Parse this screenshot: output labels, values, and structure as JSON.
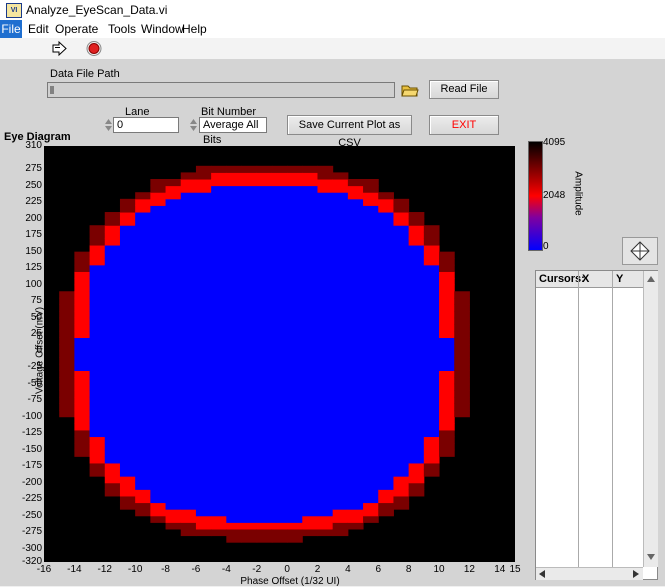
{
  "window": {
    "title": "Analyze_EyeScan_Data.vi"
  },
  "menu": [
    "File",
    "Edit",
    "Operate",
    "Tools",
    "Window",
    "Help"
  ],
  "controls": {
    "data_file_path_label": "Data File Path",
    "data_file_path_value": "",
    "read_file_label": "Read File",
    "lane_label": "Lane",
    "lane_value": "0",
    "bit_number_label": "Bit Number",
    "bit_number_value": "Average All Bits",
    "save_csv_label": "Save Current Plot as CSV",
    "exit_label": "EXIT"
  },
  "colors": {
    "exit_text": "#ff0000",
    "eye_fill": "#0000ff",
    "plot_bg": "#000000",
    "edge": "#ff0000"
  },
  "chart_data": {
    "type": "heatmap",
    "title": "Eye Diagram",
    "xlabel": "Phase Offset (1/32 UI)",
    "ylabel": "Voltage Offset (mV)",
    "xlim": [
      -16,
      15
    ],
    "ylim": [
      -320,
      310
    ],
    "x_ticks": [
      "-16",
      "-14",
      "-12",
      "-10",
      "-8",
      "-6",
      "-4",
      "-2",
      "0",
      "2",
      "4",
      "6",
      "8",
      "10",
      "12",
      "14",
      "15"
    ],
    "y_ticks": [
      "310",
      "275",
      "250",
      "225",
      "200",
      "175",
      "150",
      "125",
      "100",
      "75",
      "50",
      "25",
      "0",
      "-25",
      "-50",
      "-75",
      "-100",
      "-125",
      "-150",
      "-175",
      "-200",
      "-225",
      "-250",
      "-275",
      "-300",
      "-320"
    ],
    "colorbar": {
      "label": "Amplitude",
      "ticks": [
        "4095",
        "2048",
        "0"
      ]
    },
    "eye_opening_blue": "~-14 to 11 phase, ~-275 to 268 mV"
  },
  "cursors": {
    "headers": [
      "Cursors:",
      "X",
      "Y"
    ]
  }
}
